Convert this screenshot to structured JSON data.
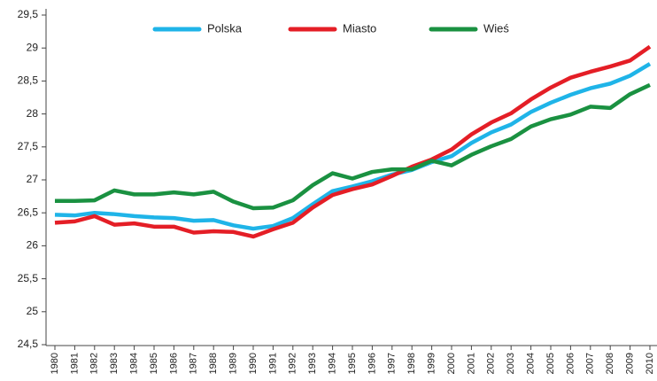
{
  "chart_data": {
    "type": "line",
    "x": [
      1980,
      1981,
      1982,
      1983,
      1984,
      1985,
      1986,
      1987,
      1988,
      1989,
      1990,
      1991,
      1992,
      1993,
      1994,
      1995,
      1996,
      1997,
      1998,
      1999,
      2000,
      2001,
      2002,
      2003,
      2004,
      2005,
      2006,
      2007,
      2008,
      2009,
      2010
    ],
    "series": [
      {
        "name": "Polska",
        "color": "#1fb4e8",
        "values": [
          26.47,
          26.46,
          26.5,
          26.48,
          26.45,
          26.43,
          26.42,
          26.38,
          26.39,
          26.31,
          26.26,
          26.3,
          26.42,
          26.63,
          26.83,
          26.9,
          26.98,
          27.08,
          27.15,
          27.27,
          27.36,
          27.56,
          27.72,
          27.84,
          28.03,
          28.17,
          28.29,
          28.39,
          28.46,
          28.58,
          28.76
        ]
      },
      {
        "name": "Miasto",
        "color": "#e41e26",
        "values": [
          26.35,
          26.37,
          26.45,
          26.32,
          26.34,
          26.29,
          26.29,
          26.2,
          26.22,
          26.21,
          26.14,
          26.25,
          26.35,
          26.58,
          26.77,
          26.86,
          26.93,
          27.06,
          27.2,
          27.31,
          27.46,
          27.69,
          27.87,
          28.01,
          28.22,
          28.4,
          28.55,
          28.64,
          28.72,
          28.81,
          29.02
        ]
      },
      {
        "name": "Wieś",
        "color": "#1a9141",
        "values": [
          26.68,
          26.68,
          26.69,
          26.84,
          26.78,
          26.78,
          26.81,
          26.78,
          26.82,
          26.67,
          26.57,
          26.58,
          26.69,
          26.92,
          27.1,
          27.02,
          27.12,
          27.16,
          27.16,
          27.29,
          27.22,
          27.38,
          27.51,
          27.62,
          27.81,
          27.92,
          27.99,
          28.11,
          28.09,
          28.3,
          28.44
        ]
      }
    ],
    "xlim": [
      1980,
      2010
    ],
    "ylim": [
      24.5,
      29.5
    ],
    "yticks": [
      {
        "value": 24.5,
        "label": "24,5"
      },
      25,
      {
        "value": 25.5,
        "label": "25,5"
      },
      26,
      {
        "value": 26.5,
        "label": "26,5"
      },
      27,
      {
        "value": 27.5,
        "label": "27,5"
      },
      28,
      {
        "value": 28.5,
        "label": "28,5"
      },
      29,
      {
        "value": 29.5,
        "label": "29,5"
      }
    ],
    "grid": false,
    "legend": "top"
  }
}
